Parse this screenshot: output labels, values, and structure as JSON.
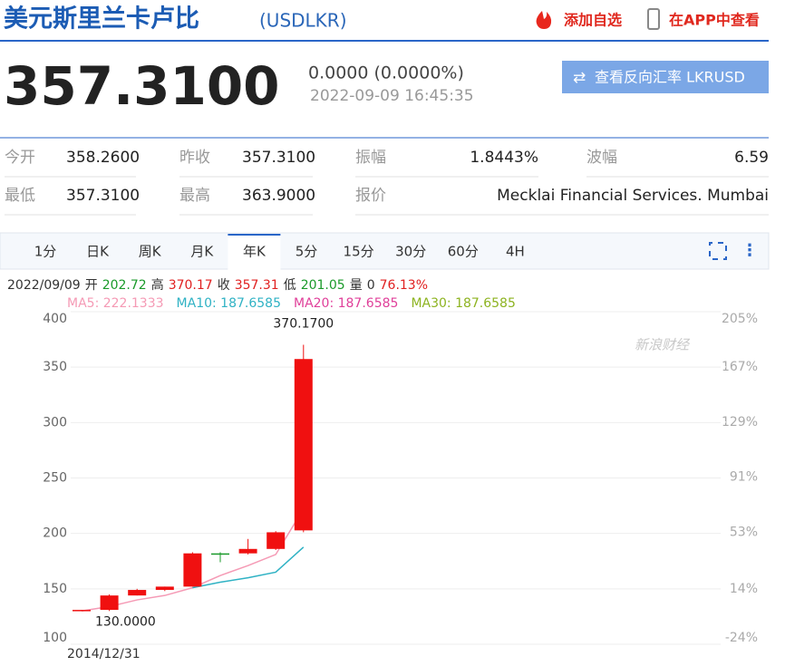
{
  "header": {
    "title": "美元斯里兰卡卢比",
    "code": "(USDLKR)",
    "add_watchlist": "添加自选",
    "view_in_app": "在APP中查看"
  },
  "quote": {
    "price": "357.3100",
    "change": "0.0000 (0.0000%)",
    "time": "2022-09-09 16:45:35",
    "reverse_button": "查看反向汇率 LKRUSD"
  },
  "stats": [
    [
      {
        "label": "今开",
        "value": "358.2600"
      },
      {
        "label": "昨收",
        "value": "357.3100"
      },
      {
        "label": "振幅",
        "value": "1.8443%"
      },
      {
        "label": "波幅",
        "value": "6.59"
      }
    ],
    [
      {
        "label": "最低",
        "value": "357.3100"
      },
      {
        "label": "最高",
        "value": "363.9000"
      },
      {
        "label": "报价",
        "value": "Mecklai Financial Services. Mumbai"
      }
    ]
  ],
  "tabs": [
    "1分",
    "日K",
    "周K",
    "月K",
    "年K",
    "5分",
    "15分",
    "30分",
    "60分",
    "4H"
  ],
  "active_tab": 4,
  "info_bar": [
    {
      "text": "2022/09/09",
      "color": "#333333"
    },
    {
      "text": "开",
      "color": "#333333"
    },
    {
      "text": "202.72",
      "color": "#1a9a2a"
    },
    {
      "text": "高",
      "color": "#333333"
    },
    {
      "text": "370.17",
      "color": "#e02020"
    },
    {
      "text": "收",
      "color": "#333333"
    },
    {
      "text": "357.31",
      "color": "#e02020"
    },
    {
      "text": "低",
      "color": "#333333"
    },
    {
      "text": "201.05",
      "color": "#1a9a2a"
    },
    {
      "text": "量",
      "color": "#333333"
    },
    {
      "text": "0",
      "color": "#333333"
    },
    {
      "text": "76.13%",
      "color": "#e02020"
    }
  ],
  "chart_data": {
    "type": "candlestick",
    "categories": [
      "2014/12/31",
      null,
      null,
      null,
      null,
      null,
      null,
      null,
      null
    ],
    "open": [
      130,
      131,
      144,
      149,
      152,
      182,
      182,
      186,
      202.72
    ],
    "high": [
      131,
      145,
      150,
      152,
      183,
      183,
      195,
      202,
      370.17
    ],
    "low": [
      130,
      130,
      144,
      148,
      152,
      174,
      181,
      185,
      201.05
    ],
    "close": [
      131,
      144,
      149,
      152,
      182,
      181,
      186,
      201,
      357.31
    ],
    "up_color": "#f01010",
    "down_color": "#1a9a2a",
    "ylim": [
      100,
      400
    ],
    "yticks": [
      100,
      150,
      200,
      250,
      300,
      350,
      400
    ],
    "y2lim": [
      -24,
      205
    ],
    "y2ticks": [
      {
        "value": -24,
        "label": "-24%"
      },
      {
        "value": 14,
        "label": "14%"
      },
      {
        "value": 53,
        "label": "53%"
      },
      {
        "value": 91,
        "label": "91%"
      },
      {
        "value": 129,
        "label": "129%"
      },
      {
        "value": 167,
        "label": "167%"
      },
      {
        "value": 205,
        "label": "205%"
      }
    ],
    "grid": true,
    "series": [
      {
        "label": "MA5: 222.1333",
        "color": "#f59ab5",
        "values": [
          130,
          134,
          140,
          144,
          151,
          162,
          171,
          181,
          222.1333
        ]
      },
      {
        "label": "MA10: 187.6585",
        "color": "#2fb2c4",
        "values": [
          null,
          null,
          null,
          null,
          151,
          156,
          160,
          165,
          187.6585
        ]
      },
      {
        "label": "MA20: 187.6585",
        "color": "#e0409a",
        "values": [
          null,
          null,
          null,
          null,
          null,
          null,
          null,
          null,
          null
        ]
      },
      {
        "label": "MA30: 187.6585",
        "color": "#8db320",
        "values": [
          null,
          null,
          null,
          null,
          null,
          null,
          null,
          null,
          null
        ]
      }
    ],
    "max_label": "370.1700",
    "min_label": "130.0000",
    "watermark": "新浪财经"
  }
}
